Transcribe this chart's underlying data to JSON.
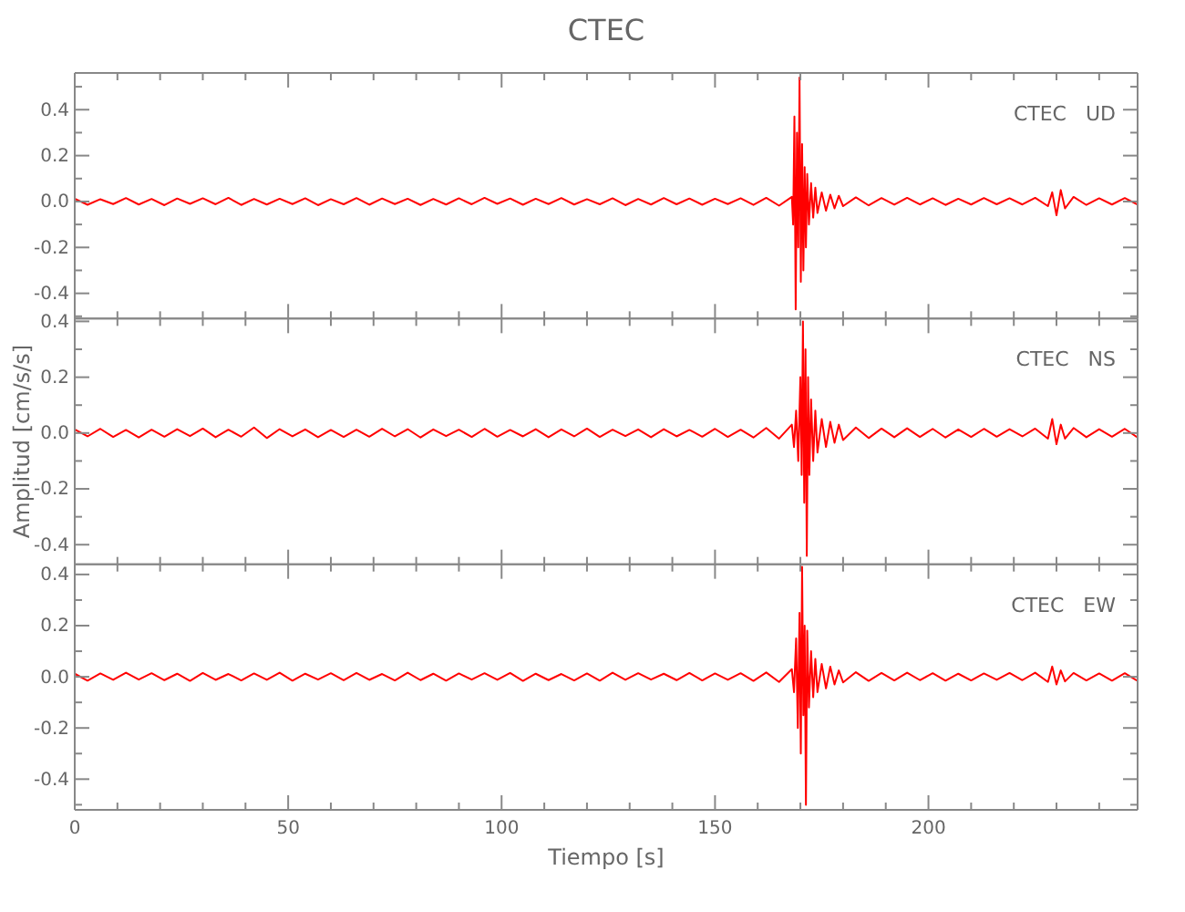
{
  "chart_data": [
    {
      "type": "line",
      "title": "CTEC",
      "annotations": [
        "CTEC   UD"
      ],
      "tick_labels": "y",
      "grid": false,
      "xlim": [
        0,
        249
      ],
      "ylim": [
        -0.51,
        0.56
      ],
      "xticks": [
        0,
        {
          "value": 10,
          "label": null
        },
        {
          "value": 20,
          "label": null
        },
        {
          "value": 30,
          "label": null
        },
        {
          "value": 40,
          "label": null
        },
        50,
        {
          "value": 60,
          "label": null
        },
        {
          "value": 70,
          "label": null
        },
        {
          "value": 80,
          "label": null
        },
        {
          "value": 90,
          "label": null
        },
        100,
        {
          "value": 110,
          "label": null
        },
        {
          "value": 120,
          "label": null
        },
        {
          "value": 130,
          "label": null
        },
        {
          "value": 140,
          "label": null
        },
        150,
        {
          "value": 160,
          "label": null
        },
        {
          "value": 170,
          "label": null
        },
        {
          "value": 180,
          "label": null
        },
        {
          "value": 190,
          "label": null
        },
        200,
        {
          "value": 210,
          "label": null
        },
        {
          "value": 220,
          "label": null
        },
        {
          "value": 230,
          "label": null
        },
        {
          "value": 240,
          "label": null
        }
      ],
      "yticks": [
        {
          "value": -0.5,
          "label": null
        },
        {
          "value": -0.4,
          "label": "-0.4"
        },
        {
          "value": -0.3,
          "label": null
        },
        {
          "value": -0.2,
          "label": "-0.2"
        },
        {
          "value": -0.1,
          "label": null
        },
        {
          "value": 0,
          "label": "0.0"
        },
        {
          "value": 0.1,
          "label": null
        },
        {
          "value": 0.2,
          "label": "0.2"
        },
        {
          "value": 0.3,
          "label": null
        },
        {
          "value": 0.4,
          "label": "0.4"
        },
        {
          "value": 0.5,
          "label": null
        }
      ],
      "series": [
        {
          "color": "#ff0000",
          "x": [
            0,
            3,
            6,
            9,
            12,
            15,
            18,
            21,
            24,
            27,
            30,
            33,
            36,
            39,
            42,
            45,
            48,
            51,
            54,
            57,
            60,
            63,
            66,
            69,
            72,
            75,
            78,
            81,
            84,
            87,
            90,
            93,
            96,
            99,
            102,
            105,
            108,
            111,
            114,
            117,
            120,
            123,
            126,
            129,
            132,
            135,
            138,
            141,
            144,
            147,
            150,
            153,
            156,
            159,
            162,
            165,
            168,
            168.3,
            168.6,
            168.9,
            169.2,
            169.5,
            169.8,
            170.1,
            170.4,
            170.7,
            171,
            171.3,
            171.6,
            172,
            172.5,
            173,
            173.5,
            174,
            175,
            176,
            177,
            178,
            179,
            180,
            183,
            186,
            189,
            192,
            195,
            198,
            201,
            204,
            207,
            210,
            213,
            216,
            219,
            222,
            225,
            228,
            229,
            230,
            231,
            232,
            234,
            237,
            240,
            243,
            246,
            249
          ],
          "values": [
            0.012,
            -0.014,
            0.01,
            -0.011,
            0.015,
            -0.013,
            0.011,
            -0.016,
            0.013,
            -0.01,
            0.014,
            -0.012,
            0.016,
            -0.015,
            0.011,
            -0.013,
            0.012,
            -0.011,
            0.014,
            -0.016,
            0.01,
            -0.012,
            0.015,
            -0.014,
            0.013,
            -0.011,
            0.012,
            -0.015,
            0.011,
            -0.013,
            0.014,
            -0.012,
            0.016,
            -0.01,
            0.013,
            -0.014,
            0.012,
            -0.011,
            0.015,
            -0.013,
            0.01,
            -0.012,
            0.014,
            -0.016,
            0.011,
            -0.013,
            0.015,
            -0.012,
            0.013,
            -0.014,
            0.012,
            -0.011,
            0.014,
            -0.015,
            0.016,
            -0.018,
            0.02,
            -0.1,
            0.37,
            -0.47,
            0.3,
            -0.2,
            0.54,
            -0.35,
            0.25,
            -0.3,
            0.15,
            -0.2,
            0.12,
            -0.1,
            0.08,
            -0.07,
            0.06,
            -0.05,
            0.04,
            -0.04,
            0.03,
            -0.03,
            0.025,
            -0.02,
            0.018,
            -0.017,
            0.015,
            -0.014,
            0.016,
            -0.013,
            0.014,
            -0.015,
            0.012,
            -0.013,
            0.015,
            -0.012,
            0.014,
            -0.013,
            0.016,
            -0.02,
            0.04,
            -0.06,
            0.05,
            -0.03,
            0.02,
            -0.015,
            0.014,
            -0.013,
            0.015,
            -0.014
          ]
        }
      ]
    },
    {
      "type": "line",
      "ylabel": "Amplitud [cm/s/s]",
      "annotations": [
        "CTEC   NS"
      ],
      "tick_labels": "y",
      "grid": false,
      "xlim": [
        0,
        249
      ],
      "ylim": [
        -0.47,
        0.41
      ],
      "xticks": [
        0,
        {
          "value": 10,
          "label": null
        },
        {
          "value": 20,
          "label": null
        },
        {
          "value": 30,
          "label": null
        },
        {
          "value": 40,
          "label": null
        },
        50,
        {
          "value": 60,
          "label": null
        },
        {
          "value": 70,
          "label": null
        },
        {
          "value": 80,
          "label": null
        },
        {
          "value": 90,
          "label": null
        },
        100,
        {
          "value": 110,
          "label": null
        },
        {
          "value": 120,
          "label": null
        },
        {
          "value": 130,
          "label": null
        },
        {
          "value": 140,
          "label": null
        },
        150,
        {
          "value": 160,
          "label": null
        },
        {
          "value": 170,
          "label": null
        },
        {
          "value": 180,
          "label": null
        },
        {
          "value": 190,
          "label": null
        },
        200,
        {
          "value": 210,
          "label": null
        },
        {
          "value": 220,
          "label": null
        },
        {
          "value": 230,
          "label": null
        },
        {
          "value": 240,
          "label": null
        }
      ],
      "yticks": [
        {
          "value": -0.4,
          "label": "-0.4"
        },
        {
          "value": -0.3,
          "label": null
        },
        {
          "value": -0.2,
          "label": "-0.2"
        },
        {
          "value": -0.1,
          "label": null
        },
        {
          "value": 0,
          "label": "0.0"
        },
        {
          "value": 0.1,
          "label": null
        },
        {
          "value": 0.2,
          "label": "0.2"
        },
        {
          "value": 0.3,
          "label": null
        },
        {
          "value": 0.4,
          "label": "0.4"
        }
      ],
      "series": [
        {
          "color": "#ff0000",
          "x": [
            0,
            3,
            6,
            9,
            12,
            15,
            18,
            21,
            24,
            27,
            30,
            33,
            36,
            39,
            42,
            45,
            48,
            51,
            54,
            57,
            60,
            63,
            66,
            69,
            72,
            75,
            78,
            81,
            84,
            87,
            90,
            93,
            96,
            99,
            102,
            105,
            108,
            111,
            114,
            117,
            120,
            123,
            126,
            129,
            132,
            135,
            138,
            141,
            144,
            147,
            150,
            153,
            156,
            159,
            162,
            165,
            168,
            168.5,
            169,
            169.5,
            170,
            170.3,
            170.6,
            170.9,
            171.2,
            171.5,
            171.8,
            172.1,
            172.5,
            173,
            173.5,
            174,
            175,
            176,
            177,
            178,
            179,
            180,
            183,
            186,
            189,
            192,
            195,
            198,
            201,
            204,
            207,
            210,
            213,
            216,
            219,
            222,
            225,
            228,
            229,
            230,
            231,
            232,
            234,
            237,
            240,
            243,
            246,
            249
          ],
          "values": [
            0.013,
            -0.012,
            0.015,
            -0.014,
            0.011,
            -0.016,
            0.012,
            -0.013,
            0.014,
            -0.011,
            0.016,
            -0.015,
            0.012,
            -0.013,
            0.02,
            -0.018,
            0.014,
            -0.012,
            0.013,
            -0.015,
            0.011,
            -0.014,
            0.012,
            -0.013,
            0.015,
            -0.012,
            0.014,
            -0.016,
            0.013,
            -0.011,
            0.012,
            -0.014,
            0.015,
            -0.013,
            0.011,
            -0.012,
            0.014,
            -0.015,
            0.013,
            -0.012,
            0.016,
            -0.014,
            0.012,
            -0.011,
            0.013,
            -0.015,
            0.014,
            -0.012,
            0.011,
            -0.013,
            0.015,
            -0.014,
            0.012,
            -0.016,
            0.018,
            -0.02,
            0.03,
            -0.05,
            0.08,
            -0.1,
            0.2,
            -0.15,
            0.4,
            -0.25,
            0.3,
            -0.44,
            0.2,
            -0.15,
            0.12,
            -0.1,
            0.08,
            -0.07,
            0.05,
            -0.05,
            0.04,
            -0.035,
            0.03,
            -0.025,
            0.02,
            -0.018,
            0.016,
            -0.015,
            0.017,
            -0.014,
            0.015,
            -0.016,
            0.013,
            -0.014,
            0.015,
            -0.013,
            0.014,
            -0.012,
            0.016,
            -0.02,
            0.05,
            -0.04,
            0.03,
            -0.02,
            0.018,
            -0.015,
            0.014,
            -0.013,
            0.015,
            -0.016
          ]
        }
      ]
    },
    {
      "type": "line",
      "xlabel": "Tiempo [s]",
      "annotations": [
        "CTEC   EW"
      ],
      "grid": false,
      "xlim": [
        0,
        249
      ],
      "ylim": [
        -0.52,
        0.44
      ],
      "xticks": [
        0,
        {
          "value": 10,
          "label": null
        },
        {
          "value": 20,
          "label": null
        },
        {
          "value": 30,
          "label": null
        },
        {
          "value": 40,
          "label": null
        },
        50,
        {
          "value": 60,
          "label": null
        },
        {
          "value": 70,
          "label": null
        },
        {
          "value": 80,
          "label": null
        },
        {
          "value": 90,
          "label": null
        },
        100,
        {
          "value": 110,
          "label": null
        },
        {
          "value": 120,
          "label": null
        },
        {
          "value": 130,
          "label": null
        },
        {
          "value": 140,
          "label": null
        },
        150,
        {
          "value": 160,
          "label": null
        },
        {
          "value": 170,
          "label": null
        },
        {
          "value": 180,
          "label": null
        },
        {
          "value": 190,
          "label": null
        },
        200,
        {
          "value": 210,
          "label": null
        },
        {
          "value": 220,
          "label": null
        },
        {
          "value": 230,
          "label": null
        },
        {
          "value": 240,
          "label": null
        }
      ],
      "yticks": [
        {
          "value": -0.5,
          "label": null
        },
        {
          "value": -0.4,
          "label": "-0.4"
        },
        {
          "value": -0.3,
          "label": null
        },
        {
          "value": -0.2,
          "label": "-0.2"
        },
        {
          "value": -0.1,
          "label": null
        },
        {
          "value": 0,
          "label": "0.0"
        },
        {
          "value": 0.1,
          "label": null
        },
        {
          "value": 0.2,
          "label": "0.2"
        },
        {
          "value": 0.3,
          "label": null
        },
        {
          "value": 0.4,
          "label": "0.4"
        }
      ],
      "series": [
        {
          "color": "#ff0000",
          "x": [
            0,
            3,
            6,
            9,
            12,
            15,
            18,
            21,
            24,
            27,
            30,
            33,
            36,
            39,
            42,
            45,
            48,
            51,
            54,
            57,
            60,
            63,
            66,
            69,
            72,
            75,
            78,
            81,
            84,
            87,
            90,
            93,
            96,
            99,
            102,
            105,
            108,
            111,
            114,
            117,
            120,
            123,
            126,
            129,
            132,
            135,
            138,
            141,
            144,
            147,
            150,
            153,
            156,
            159,
            162,
            165,
            168,
            168.5,
            169,
            169.4,
            169.8,
            170.1,
            170.4,
            170.7,
            171,
            171.3,
            171.6,
            172,
            172.5,
            173,
            173.5,
            174,
            175,
            176,
            177,
            178,
            179,
            180,
            183,
            186,
            189,
            192,
            195,
            198,
            201,
            204,
            207,
            210,
            213,
            216,
            219,
            222,
            225,
            228,
            229,
            230,
            231,
            232,
            234,
            237,
            240,
            243,
            246,
            249
          ],
          "values": [
            0.012,
            -0.015,
            0.013,
            -0.012,
            0.016,
            -0.011,
            0.014,
            -0.013,
            0.012,
            -0.016,
            0.015,
            -0.012,
            0.011,
            -0.014,
            0.013,
            -0.012,
            0.016,
            -0.015,
            0.012,
            -0.011,
            0.014,
            -0.013,
            0.015,
            -0.012,
            0.011,
            -0.014,
            0.016,
            -0.013,
            0.012,
            -0.015,
            0.013,
            -0.011,
            0.014,
            -0.012,
            0.015,
            -0.016,
            0.012,
            -0.013,
            0.011,
            -0.014,
            0.013,
            -0.015,
            0.016,
            -0.012,
            0.014,
            -0.011,
            0.012,
            -0.013,
            0.015,
            -0.014,
            0.013,
            -0.012,
            0.014,
            -0.016,
            0.017,
            -0.02,
            0.03,
            -0.06,
            0.15,
            -0.2,
            0.25,
            -0.3,
            0.43,
            -0.15,
            0.2,
            -0.5,
            0.18,
            -0.12,
            0.1,
            -0.08,
            0.07,
            -0.06,
            0.05,
            -0.045,
            0.04,
            -0.03,
            0.025,
            -0.022,
            0.018,
            -0.016,
            0.015,
            -0.014,
            0.016,
            -0.013,
            0.014,
            -0.015,
            0.012,
            -0.014,
            0.013,
            -0.012,
            0.015,
            -0.013,
            0.016,
            -0.02,
            0.04,
            -0.03,
            0.025,
            -0.018,
            0.015,
            -0.014,
            0.013,
            -0.015,
            0.014,
            -0.016
          ]
        }
      ]
    }
  ]
}
